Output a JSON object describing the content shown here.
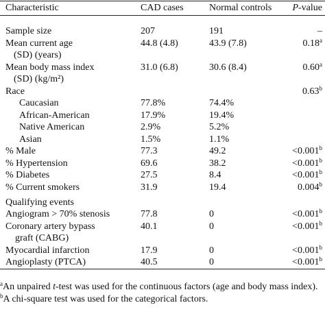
{
  "table": {
    "columns": [
      {
        "text": "Characteristic"
      },
      {
        "text": "CAD cases"
      },
      {
        "text": "Normal controls"
      },
      {
        "text_italic": "P",
        "text": "-value"
      }
    ],
    "sections": [
      {
        "rows": [
          {
            "label": [
              "Sample size"
            ],
            "cad": "207",
            "normal": "191",
            "p": "–"
          },
          {
            "label": [
              "Mean current age",
              "(SD) (years)"
            ],
            "cad": "44.8 (4.8)",
            "normal": "43.9 (7.8)",
            "p": "0.18",
            "p_note": "a"
          },
          {
            "label": [
              "Mean body mass index",
              "(SD) (kg/m²)"
            ],
            "cad": "31.0 (6.8)",
            "normal": "30.6 (8.4)",
            "p": "0.60",
            "p_note": "a"
          },
          {
            "label": [
              "Race"
            ],
            "p": "0.63",
            "p_note": "b",
            "subrows": [
              {
                "label": [
                  "Caucasian"
                ],
                "cad": "77.8%",
                "normal": "74.4%"
              },
              {
                "label": [
                  "African-American"
                ],
                "cad": "17.9%",
                "normal": "19.4%"
              },
              {
                "label": [
                  "Native American"
                ],
                "cad": "2.9%",
                "normal": "5.2%"
              },
              {
                "label": [
                  "Asian"
                ],
                "cad": "1.5%",
                "normal": "1.1%"
              }
            ]
          },
          {
            "label": [
              "% Male"
            ],
            "cad": "77.3",
            "normal": "49.2",
            "p": "<0.001",
            "p_note": "b"
          },
          {
            "label": [
              "% Hypertension"
            ],
            "cad": "69.6",
            "normal": "38.2",
            "p": "<0.001",
            "p_note": "b"
          },
          {
            "label": [
              "% Diabetes"
            ],
            "cad": "27.5",
            "normal": "8.4",
            "p": "<0.001",
            "p_note": "b"
          },
          {
            "label": [
              "% Current smokers"
            ],
            "cad": "31.9",
            "normal": "19.4",
            "p": "0.004",
            "p_note": "b"
          }
        ]
      },
      {
        "heading": "Qualifying events",
        "rows": [
          {
            "label": [
              "Angiogram > 70% stenosis"
            ],
            "cad": "77.8",
            "normal": "0",
            "p": "<0.001",
            "p_note": "b"
          },
          {
            "label": [
              "Coronary artery bypass",
              "graft (CABG)"
            ],
            "cad": "40.1",
            "normal": "0",
            "p": "<0.001",
            "p_note": "b"
          },
          {
            "label": [
              "Myocardial infarction"
            ],
            "cad": "17.9",
            "normal": "0",
            "p": "<0.001",
            "p_note": "b"
          },
          {
            "label": [
              "Angioplasty (PTCA)"
            ],
            "cad": "40.5",
            "normal": "0",
            "p": "<0.001",
            "p_note": "b"
          }
        ]
      }
    ],
    "footnotes": [
      {
        "mark": "a",
        "parts": [
          {
            "text": "An unpaired "
          },
          {
            "italic": "t"
          },
          {
            "text": "-test was used for the continuous factors (age and body mass index)."
          }
        ]
      },
      {
        "mark": "b",
        "parts": [
          {
            "text": "A chi-square test was used for the categorical factors."
          }
        ]
      }
    ]
  }
}
